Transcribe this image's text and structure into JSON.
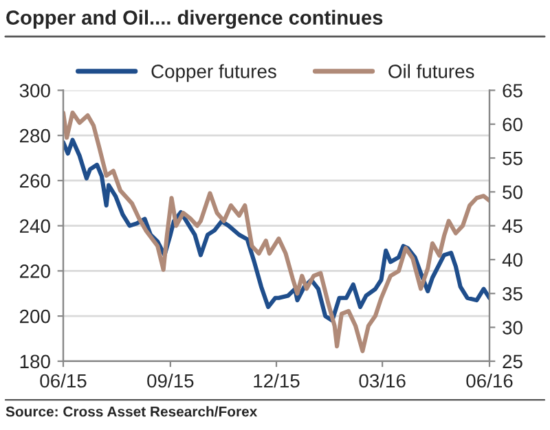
{
  "chart_data": {
    "type": "line",
    "title": "Copper and Oil.... divergence continues",
    "annotations": [
      "Source: Cross Asset Research/Forex"
    ],
    "xlim": [
      "2015-06",
      "2016-06"
    ],
    "xticks": [
      {
        "value": "2015-06",
        "label": "06/15"
      },
      {
        "value": "2015-09",
        "label": "09/15"
      },
      {
        "value": "2015-12",
        "label": "12/15"
      },
      {
        "value": "2016-03",
        "label": "03/16"
      },
      {
        "value": "2016-06",
        "label": "06/16"
      }
    ],
    "ylim": [
      180,
      300
    ],
    "yticks": [
      180,
      200,
      220,
      240,
      260,
      280,
      300
    ],
    "y2lim": [
      25,
      65
    ],
    "y2ticks": [
      25,
      30,
      35,
      40,
      45,
      50,
      55,
      60,
      65
    ],
    "grid": "y",
    "legend": "top",
    "line_style": "solid",
    "marker": "none",
    "series": [
      {
        "name": "Copper futures",
        "color": "#1f4e8c",
        "axis": "y",
        "x": [
          "2015-06-01",
          "2015-06-05",
          "2015-06-09",
          "2015-06-15",
          "2015-06-21",
          "2015-06-24",
          "2015-06-30",
          "2015-07-04",
          "2015-07-08",
          "2015-07-10",
          "2015-07-16",
          "2015-07-22",
          "2015-07-28",
          "2015-08-03",
          "2015-08-10",
          "2015-08-15",
          "2015-08-21",
          "2015-08-27",
          "2015-09-01",
          "2015-09-04",
          "2015-09-10",
          "2015-09-16",
          "2015-09-22",
          "2015-09-27",
          "2015-10-03",
          "2015-10-09",
          "2015-10-15",
          "2015-10-21",
          "2015-10-30",
          "2015-11-06",
          "2015-11-12",
          "2015-11-18",
          "2015-11-24",
          "2015-11-30",
          "2015-12-03",
          "2015-12-11",
          "2015-12-17",
          "2015-12-19",
          "2015-12-25",
          "2015-12-31",
          "2016-01-06",
          "2016-01-12",
          "2016-01-18",
          "2016-01-24",
          "2016-01-30",
          "2016-02-05",
          "2016-02-11",
          "2016-02-16",
          "2016-02-24",
          "2016-02-29",
          "2016-03-04",
          "2016-03-08",
          "2016-03-15",
          "2016-03-19",
          "2016-03-23",
          "2016-03-29",
          "2016-04-03",
          "2016-04-09",
          "2016-04-13",
          "2016-04-19",
          "2016-04-23",
          "2016-04-29",
          "2016-05-03",
          "2016-05-07",
          "2016-05-13",
          "2016-05-21",
          "2016-05-27",
          "2016-06-01"
        ],
        "values": [
          277,
          272,
          278,
          271,
          261,
          265,
          267,
          262,
          249,
          258,
          253,
          245,
          240,
          241,
          243,
          236,
          233,
          227,
          236,
          242,
          246,
          241,
          236,
          227,
          236,
          238,
          242,
          240,
          236,
          234,
          224,
          213,
          204,
          208,
          208,
          209,
          212,
          207,
          213,
          216,
          212,
          200,
          198,
          208,
          208,
          214,
          204,
          209,
          212,
          216,
          229,
          224,
          226,
          231,
          230,
          226,
          219,
          211,
          217,
          223,
          227,
          228,
          222,
          213,
          208,
          207,
          212,
          208
        ]
      },
      {
        "name": "Oil futures",
        "color": "#b08a78",
        "axis": "y2",
        "x": [
          "2015-06-01",
          "2015-06-04",
          "2015-06-09",
          "2015-06-15",
          "2015-06-22",
          "2015-06-27",
          "2015-07-02",
          "2015-07-08",
          "2015-07-14",
          "2015-07-20",
          "2015-07-30",
          "2015-08-05",
          "2015-08-11",
          "2015-08-21",
          "2015-08-26",
          "2015-08-29",
          "2015-09-02",
          "2015-09-06",
          "2015-09-12",
          "2015-09-18",
          "2015-09-24",
          "2015-09-27",
          "2015-10-05",
          "2015-10-11",
          "2015-10-17",
          "2015-10-23",
          "2015-10-30",
          "2015-11-04",
          "2015-11-10",
          "2015-11-16",
          "2015-11-22",
          "2015-11-25",
          "2015-12-03",
          "2015-12-09",
          "2015-12-15",
          "2015-12-19",
          "2015-12-23",
          "2015-12-27",
          "2016-01-02",
          "2016-01-08",
          "2016-01-14",
          "2016-01-20",
          "2016-01-22",
          "2016-01-26",
          "2016-02-01",
          "2016-02-07",
          "2016-02-13",
          "2016-02-18",
          "2016-02-24",
          "2016-02-29",
          "2016-03-08",
          "2016-03-15",
          "2016-03-21",
          "2016-03-27",
          "2016-04-03",
          "2016-04-09",
          "2016-04-13",
          "2016-04-19",
          "2016-04-23",
          "2016-04-27",
          "2016-05-03",
          "2016-05-09",
          "2016-05-15",
          "2016-05-21",
          "2016-05-27",
          "2016-06-01"
        ],
        "values": [
          61.7,
          58,
          61.7,
          60.2,
          61.3,
          59.8,
          56.5,
          52.4,
          53.1,
          50.2,
          48.3,
          46.1,
          44.3,
          42,
          38.5,
          43.5,
          49.1,
          45,
          46.9,
          46.1,
          45,
          45.7,
          49.8,
          46.9,
          45.7,
          48,
          46.5,
          48,
          42,
          40.9,
          42.8,
          40.9,
          43.1,
          40.9,
          37.2,
          35,
          37.6,
          35.7,
          37.6,
          38,
          33.9,
          30.2,
          27.2,
          32,
          32.4,
          30.2,
          26.5,
          30.2,
          31.7,
          34.3,
          37.6,
          38.3,
          41.7,
          40.2,
          35.7,
          38.7,
          42.4,
          40.6,
          43.5,
          45.7,
          43.9,
          45,
          48,
          49.1,
          49.4,
          48.7
        ]
      }
    ]
  }
}
